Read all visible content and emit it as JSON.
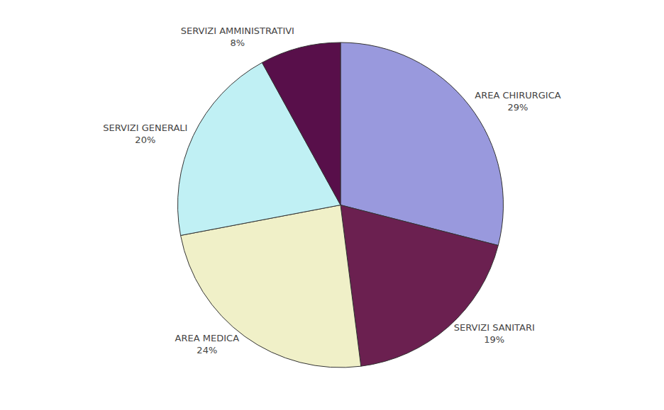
{
  "chart_data": {
    "type": "pie",
    "categories": [
      "AREA CHIRURGICA",
      "SERVIZI SANITARI",
      "AREA MEDICA",
      "SERVIZI GENERALI",
      "SERVIZI AMMINISTRATIVI"
    ],
    "values": [
      29,
      19,
      24,
      20,
      8
    ],
    "value_labels": [
      "29%",
      "19%",
      "24%",
      "20%",
      "8%"
    ],
    "colors": [
      "#9999dd",
      "#6b2050",
      "#f0f0c8",
      "#c0f0f4",
      "#580f4a"
    ],
    "data_labels": true
  }
}
